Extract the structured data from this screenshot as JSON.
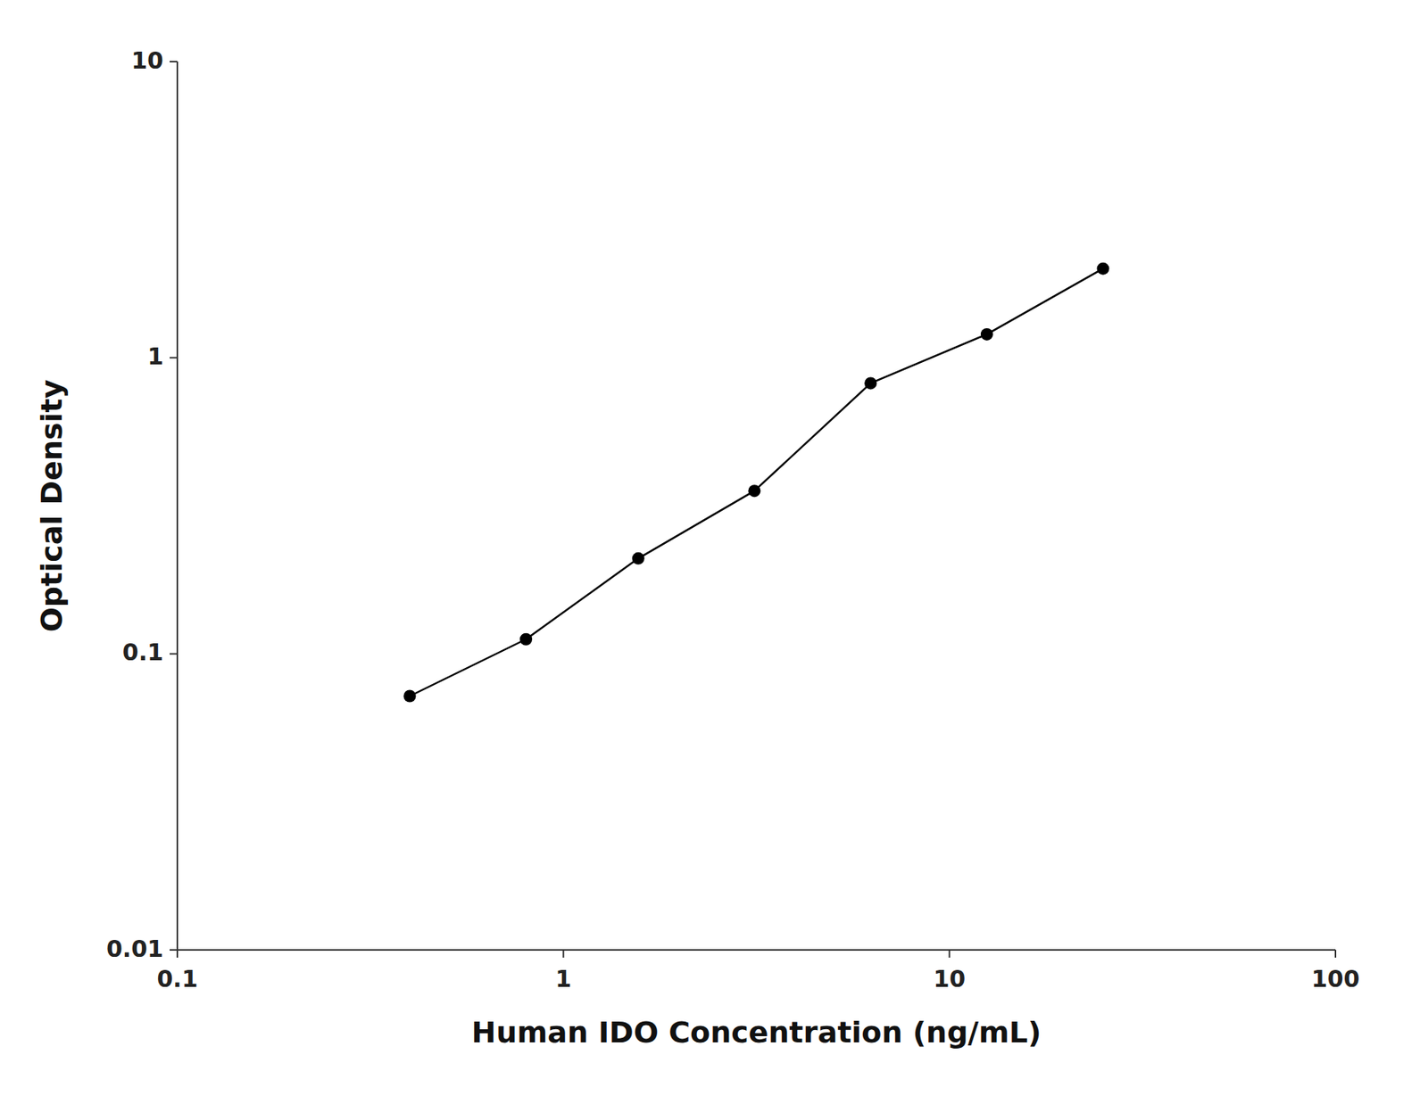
{
  "chart_data": {
    "type": "line",
    "x": [
      0.4,
      0.8,
      1.563,
      3.125,
      6.25,
      12.5,
      25.0
    ],
    "values": [
      0.072,
      0.112,
      0.21,
      0.355,
      0.82,
      1.2,
      2.0
    ],
    "color": "#000000",
    "marker": "circle",
    "xlabel": "Human IDO Concentration (ng/mL)",
    "ylabel": "Optical Density",
    "xlim": [
      0.1,
      100
    ],
    "ylim": [
      0.01,
      10
    ],
    "xticks": [
      0.1,
      1,
      10,
      100
    ],
    "yticks": [
      0.01,
      0.1,
      1,
      10
    ],
    "log": true,
    "grid": false
  }
}
